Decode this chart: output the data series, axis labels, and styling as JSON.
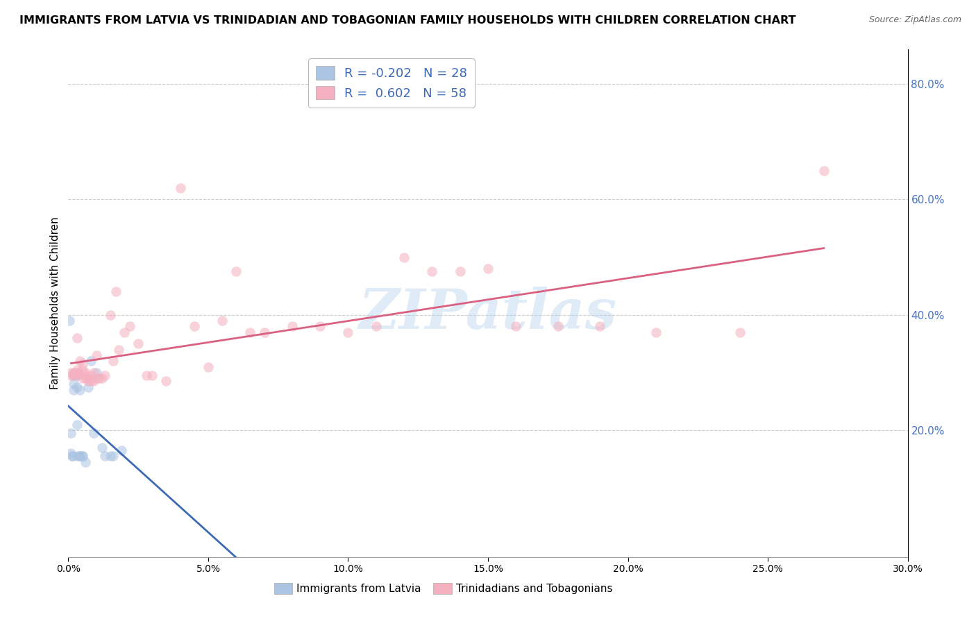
{
  "title": "IMMIGRANTS FROM LATVIA VS TRINIDADIAN AND TOBAGONIAN FAMILY HOUSEHOLDS WITH CHILDREN CORRELATION CHART",
  "source": "Source: ZipAtlas.com",
  "ylabel": "Family Households with Children",
  "legend_label1": "Immigrants from Latvia",
  "legend_label2": "Trinidadians and Tobagonians",
  "r1": -0.202,
  "n1": 28,
  "r2": 0.602,
  "n2": 58,
  "color_blue": "#aac4e2",
  "color_pink": "#f5b0c0",
  "line_color_blue": "#3c6ab5",
  "line_color_pink": "#d96080",
  "xlim": [
    0.0,
    0.3
  ],
  "ylim": [
    -0.02,
    0.86
  ],
  "xticks": [
    0.0,
    0.05,
    0.1,
    0.15,
    0.2,
    0.25,
    0.3
  ],
  "yticks_right": [
    0.2,
    0.4,
    0.6,
    0.8
  ],
  "blue_x": [
    0.0005,
    0.001,
    0.001,
    0.0015,
    0.0015,
    0.002,
    0.002,
    0.002,
    0.0025,
    0.003,
    0.003,
    0.003,
    0.003,
    0.004,
    0.004,
    0.004,
    0.005,
    0.005,
    0.006,
    0.007,
    0.008,
    0.009,
    0.01,
    0.012,
    0.013,
    0.015,
    0.016,
    0.019
  ],
  "blue_y": [
    0.39,
    0.195,
    0.16,
    0.155,
    0.155,
    0.295,
    0.28,
    0.27,
    0.3,
    0.295,
    0.275,
    0.21,
    0.155,
    0.155,
    0.155,
    0.27,
    0.155,
    0.155,
    0.145,
    0.275,
    0.32,
    0.195,
    0.3,
    0.17,
    0.155,
    0.155,
    0.155,
    0.165
  ],
  "pink_x": [
    0.001,
    0.001,
    0.002,
    0.002,
    0.003,
    0.003,
    0.003,
    0.003,
    0.004,
    0.004,
    0.005,
    0.005,
    0.005,
    0.006,
    0.006,
    0.006,
    0.007,
    0.007,
    0.008,
    0.008,
    0.009,
    0.009,
    0.01,
    0.01,
    0.011,
    0.012,
    0.013,
    0.015,
    0.016,
    0.017,
    0.018,
    0.02,
    0.022,
    0.025,
    0.028,
    0.03,
    0.035,
    0.04,
    0.045,
    0.05,
    0.055,
    0.06,
    0.065,
    0.07,
    0.08,
    0.09,
    0.1,
    0.11,
    0.12,
    0.13,
    0.14,
    0.15,
    0.16,
    0.175,
    0.19,
    0.21,
    0.24,
    0.27
  ],
  "pink_y": [
    0.3,
    0.295,
    0.295,
    0.3,
    0.3,
    0.295,
    0.36,
    0.305,
    0.32,
    0.3,
    0.315,
    0.305,
    0.29,
    0.3,
    0.29,
    0.295,
    0.29,
    0.285,
    0.295,
    0.285,
    0.3,
    0.285,
    0.29,
    0.33,
    0.29,
    0.29,
    0.295,
    0.4,
    0.32,
    0.44,
    0.34,
    0.37,
    0.38,
    0.35,
    0.295,
    0.295,
    0.285,
    0.62,
    0.38,
    0.31,
    0.39,
    0.475,
    0.37,
    0.37,
    0.38,
    0.38,
    0.37,
    0.38,
    0.5,
    0.475,
    0.475,
    0.48,
    0.38,
    0.38,
    0.38,
    0.37,
    0.37,
    0.65
  ],
  "watermark_text": "ZIPatlas",
  "dot_size": 110,
  "dot_alpha": 0.55,
  "blue_line_solid_end": 0.13,
  "pink_line_start": 0.001,
  "pink_line_end": 0.27
}
